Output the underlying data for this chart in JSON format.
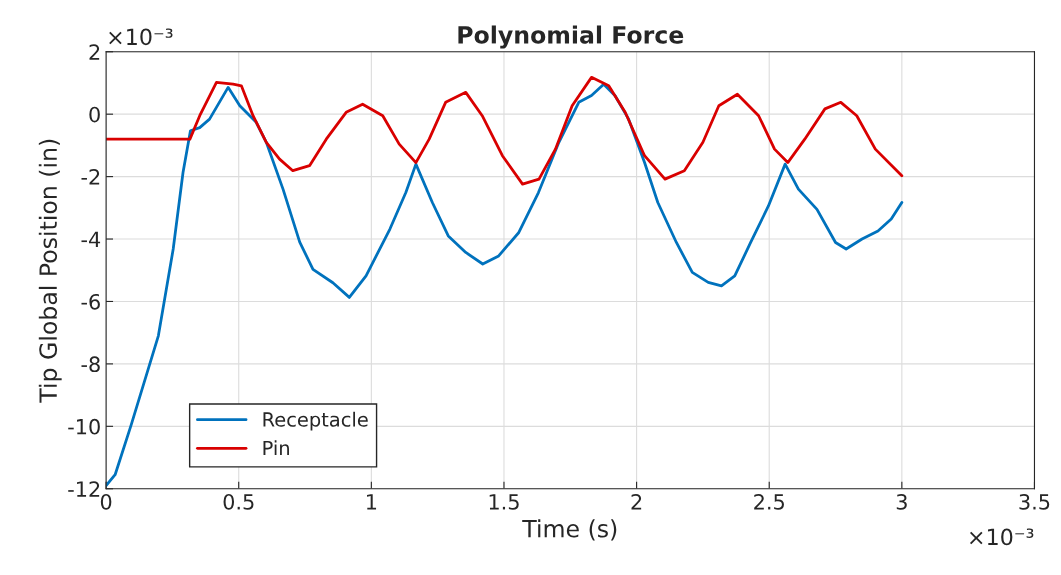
{
  "chart_data": {
    "type": "line",
    "title": "Polynomial Force",
    "xlabel": "Time (s)",
    "ylabel": "Tip Global Position (in)",
    "annotations": [
      "×10⁻³",
      "×10⁻³"
    ],
    "xlim": [
      0,
      3.5
    ],
    "xticks": [
      0,
      0.5,
      1,
      1.5,
      2,
      2.5,
      3,
      3.5
    ],
    "ylim": [
      -12,
      2
    ],
    "yticks": [
      -12,
      -10,
      -8,
      -6,
      -4,
      -2,
      0,
      2
    ],
    "grid": true,
    "legend": "bottom left",
    "series": [
      {
        "name": "Receptacle",
        "color": "#0072bd",
        "x": [
          0,
          0.034,
          0.094,
          0.197,
          0.253,
          0.29,
          0.318,
          0.353,
          0.39,
          0.46,
          0.504,
          0.566,
          0.604,
          0.667,
          0.73,
          0.78,
          0.855,
          0.917,
          0.98,
          1.07,
          1.13,
          1.168,
          1.23,
          1.29,
          1.356,
          1.42,
          1.48,
          1.556,
          1.63,
          1.707,
          1.782,
          1.83,
          1.876,
          1.919,
          1.97,
          2.03,
          2.08,
          2.15,
          2.21,
          2.27,
          2.32,
          2.37,
          2.43,
          2.497,
          2.56,
          2.61,
          2.68,
          2.75,
          2.79,
          2.85,
          2.91,
          2.96,
          3.0
        ],
        "values": [
          -11.9,
          -11.55,
          -9.97,
          -7.1,
          -4.32,
          -1.87,
          -0.53,
          -0.43,
          -0.16,
          0.86,
          0.27,
          -0.26,
          -0.9,
          -2.4,
          -4.1,
          -4.97,
          -5.4,
          -5.87,
          -5.18,
          -3.68,
          -2.51,
          -1.6,
          -2.83,
          -3.9,
          -4.43,
          -4.8,
          -4.54,
          -3.79,
          -2.51,
          -0.9,
          0.38,
          0.6,
          0.96,
          0.59,
          -0.16,
          -1.55,
          -2.83,
          -4.11,
          -5.07,
          -5.39,
          -5.5,
          -5.18,
          -4.11,
          -2.94,
          -1.6,
          -2.4,
          -3.05,
          -4.11,
          -4.32,
          -4.0,
          -3.74,
          -3.36,
          -2.83
        ]
      },
      {
        "name": "Pin",
        "color": "#d90000",
        "x": [
          0,
          0.316,
          0.353,
          0.416,
          0.479,
          0.51,
          0.554,
          0.604,
          0.654,
          0.704,
          0.767,
          0.83,
          0.905,
          0.967,
          1.043,
          1.105,
          1.168,
          1.218,
          1.28,
          1.356,
          1.418,
          1.494,
          1.57,
          1.632,
          1.694,
          1.757,
          1.83,
          1.895,
          1.957,
          2.03,
          2.107,
          2.18,
          2.25,
          2.31,
          2.38,
          2.46,
          2.52,
          2.57,
          2.634,
          2.71,
          2.77,
          2.83,
          2.9,
          3.0
        ],
        "values": [
          -0.8,
          -0.8,
          -0.05,
          1.02,
          0.96,
          0.91,
          -0.05,
          -0.9,
          -1.44,
          -1.81,
          -1.65,
          -0.8,
          0.06,
          0.32,
          -0.05,
          -0.96,
          -1.55,
          -0.8,
          0.38,
          0.7,
          -0.05,
          -1.33,
          -2.24,
          -2.08,
          -1.12,
          0.27,
          1.18,
          0.91,
          0.06,
          -1.33,
          -2.08,
          -1.81,
          -0.9,
          0.27,
          0.64,
          -0.05,
          -1.12,
          -1.55,
          -0.8,
          0.17,
          0.38,
          -0.05,
          -1.12,
          -1.97
        ]
      }
    ]
  }
}
